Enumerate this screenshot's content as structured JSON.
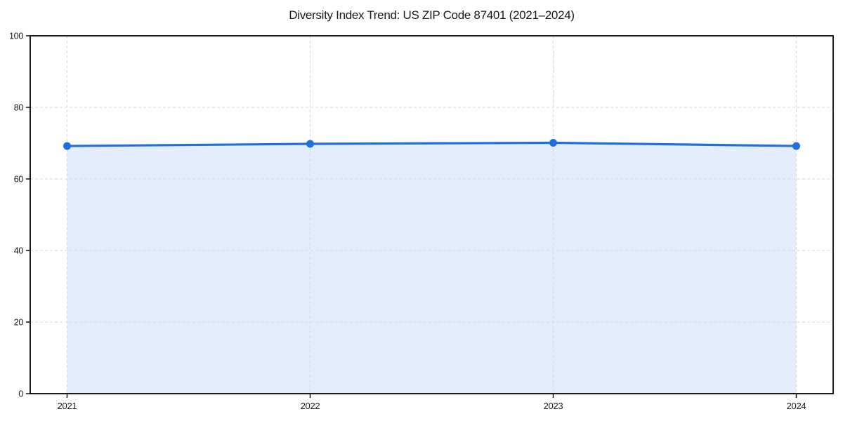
{
  "chart_data": {
    "type": "line",
    "title": "Diversity Index Trend: US ZIP Code 87401 (2021–2024)",
    "categories": [
      "2021",
      "2022",
      "2023",
      "2024"
    ],
    "series": [
      {
        "name": "Diversity Index",
        "values": [
          69.2,
          69.8,
          70.1,
          69.2
        ]
      }
    ],
    "xlabel": "",
    "ylabel": "",
    "ylim": [
      0,
      100
    ],
    "yticks": [
      0,
      20,
      40,
      60,
      80,
      100
    ],
    "grid": true,
    "grid_style": "dashed",
    "legend": "none",
    "marker": "circle",
    "area_fill": true,
    "colors": {
      "line": "#1f6fe0",
      "marker": "#1f6fe0",
      "area_fill": "rgba(31,111,224,0.12)",
      "gridline": "#d9d9d9",
      "axis_frame": "#000000",
      "text": "#1a1a1a",
      "background": "#ffffff"
    }
  }
}
